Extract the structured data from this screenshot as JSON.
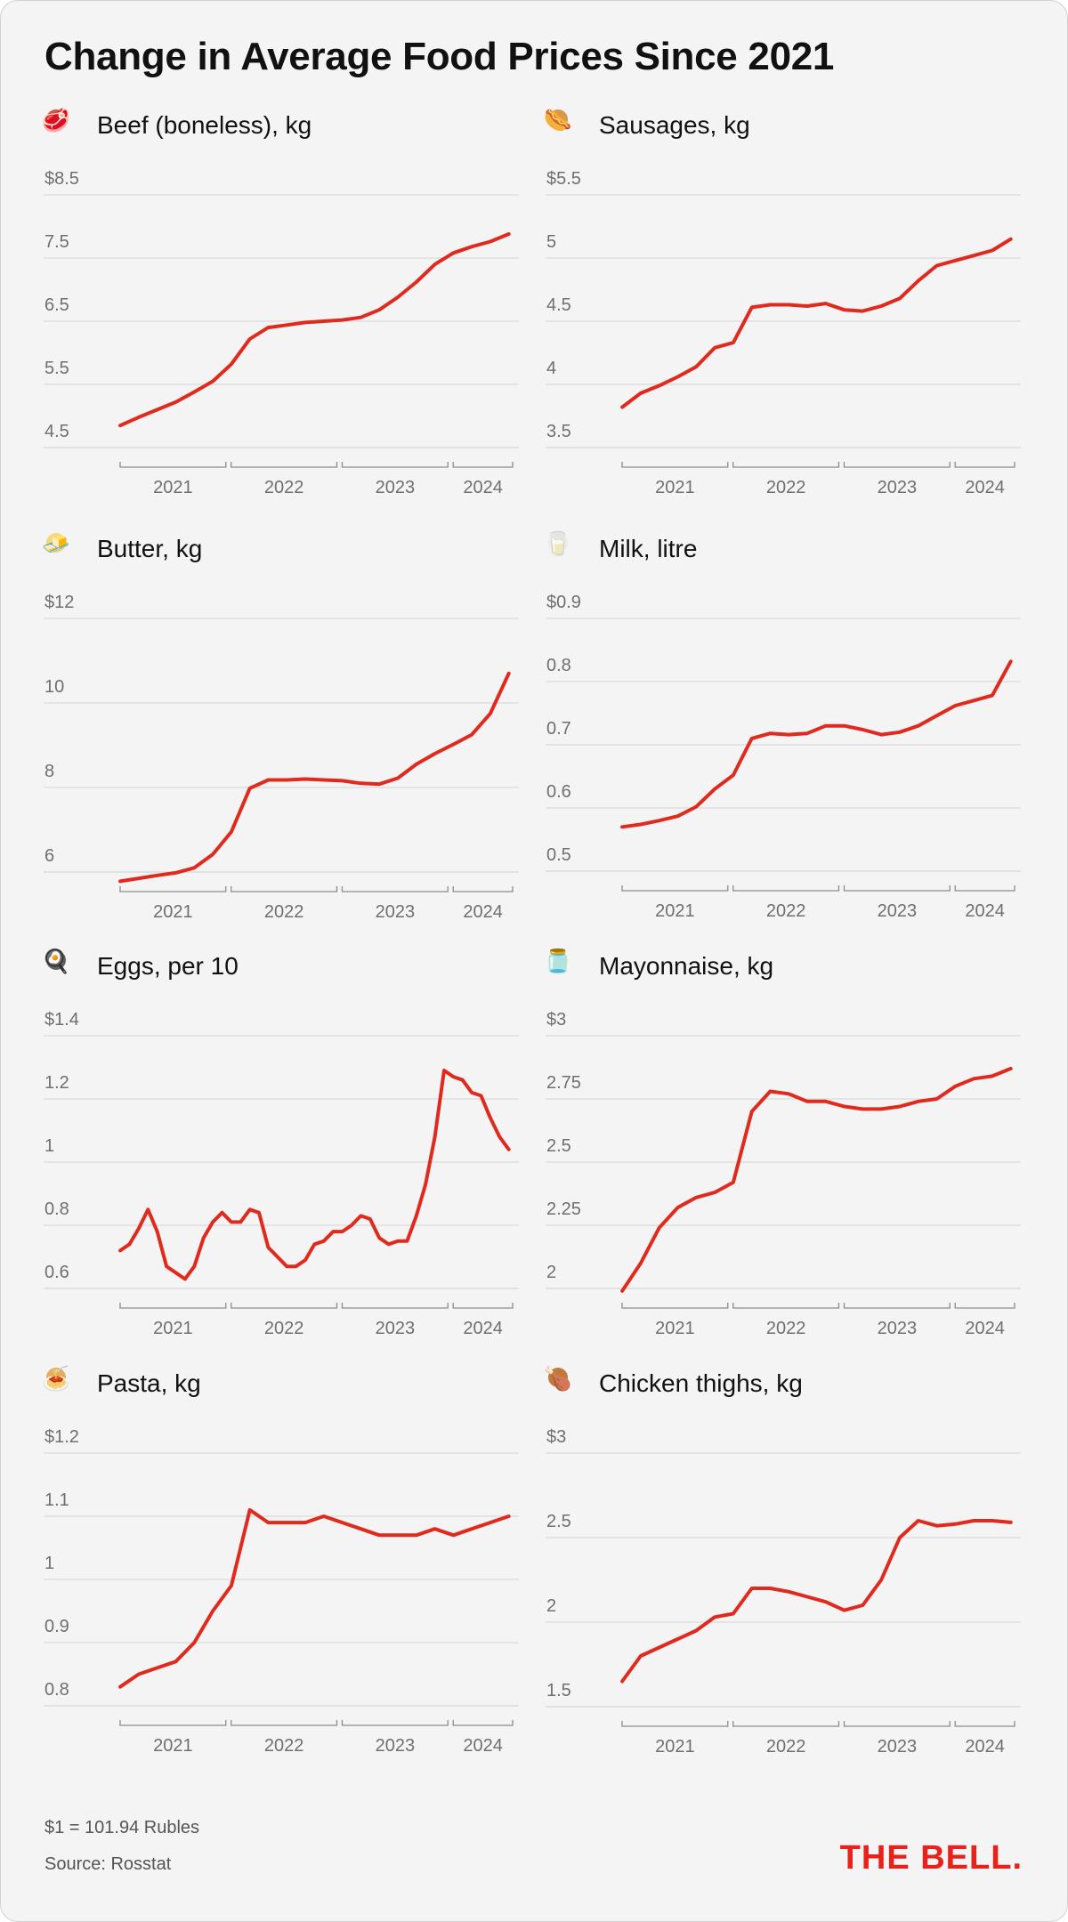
{
  "title": "Change in Average Food Prices Since 2021",
  "footnotes": {
    "exchange_rate": "$1 = 101.94 Rubles",
    "source": "Source: Rosstat"
  },
  "brand": "THE BELL.",
  "colors": {
    "line": "#e02a1e",
    "grid": "#d9d9d9",
    "axis_text": "#6f6f6f",
    "brand": "#e8211a"
  },
  "chart_data": [
    {
      "type": "line",
      "title": "Beef (boneless), kg",
      "icon": "beef-steak-icon",
      "yticks": [
        "$8.5",
        "7.5",
        "6.5",
        "5.5",
        "4.5"
      ],
      "ylim": [
        4.1,
        8.5
      ],
      "x_categories": [
        "2021",
        "2022",
        "2023",
        "2024"
      ],
      "x": [
        "2021-01",
        "2021-03",
        "2021-05",
        "2021-07",
        "2021-09",
        "2021-11",
        "2022-01",
        "2022-03",
        "2022-05",
        "2022-07",
        "2022-09",
        "2022-11",
        "2023-01",
        "2023-03",
        "2023-05",
        "2023-07",
        "2023-09",
        "2023-11",
        "2024-01",
        "2024-03",
        "2024-05",
        "2024-07"
      ],
      "values": [
        4.85,
        4.98,
        5.1,
        5.22,
        5.38,
        5.55,
        5.82,
        6.22,
        6.4,
        6.44,
        6.48,
        6.5,
        6.52,
        6.56,
        6.68,
        6.88,
        7.12,
        7.4,
        7.58,
        7.68,
        7.76,
        7.88
      ]
    },
    {
      "type": "line",
      "title": "Sausages, kg",
      "icon": "hot-dog-icon",
      "yticks": [
        "$5.5",
        "5",
        "4.5",
        "4",
        "3.5"
      ],
      "ylim": [
        3.3,
        5.5
      ],
      "x_categories": [
        "2021",
        "2022",
        "2023",
        "2024"
      ],
      "x": [
        "2021-01",
        "2021-03",
        "2021-05",
        "2021-07",
        "2021-09",
        "2021-11",
        "2022-01",
        "2022-03",
        "2022-05",
        "2022-07",
        "2022-09",
        "2022-11",
        "2023-01",
        "2023-03",
        "2023-05",
        "2023-07",
        "2023-09",
        "2023-11",
        "2024-01",
        "2024-03",
        "2024-05",
        "2024-07"
      ],
      "values": [
        3.82,
        3.93,
        3.99,
        4.06,
        4.14,
        4.29,
        4.33,
        4.61,
        4.63,
        4.63,
        4.62,
        4.64,
        4.59,
        4.58,
        4.62,
        4.68,
        4.82,
        4.94,
        4.98,
        5.02,
        5.06,
        5.15
      ]
    },
    {
      "type": "line",
      "title": "Butter, kg",
      "icon": "butter-icon",
      "yticks": [
        "$12",
        "10",
        "8",
        "6"
      ],
      "ylim": [
        5.5,
        12
      ],
      "x_categories": [
        "2021",
        "2022",
        "2023",
        "2024"
      ],
      "x": [
        "2021-01",
        "2021-03",
        "2021-05",
        "2021-07",
        "2021-09",
        "2021-11",
        "2022-01",
        "2022-03",
        "2022-05",
        "2022-07",
        "2022-09",
        "2022-11",
        "2023-01",
        "2023-03",
        "2023-05",
        "2023-07",
        "2023-09",
        "2023-11",
        "2024-01",
        "2024-03",
        "2024-05",
        "2024-07"
      ],
      "values": [
        5.78,
        5.85,
        5.92,
        5.98,
        6.1,
        6.42,
        6.95,
        7.98,
        8.18,
        8.18,
        8.2,
        8.18,
        8.16,
        8.1,
        8.08,
        8.22,
        8.55,
        8.8,
        9.02,
        9.25,
        9.75,
        10.7
      ]
    },
    {
      "type": "line",
      "title": "Milk, litre",
      "icon": "glass-of-milk-icon",
      "yticks": [
        "$0.9",
        "0.8",
        "0.7",
        "0.6",
        "0.5"
      ],
      "ylim": [
        0.465,
        0.9
      ],
      "x_categories": [
        "2021",
        "2022",
        "2023",
        "2024"
      ],
      "x": [
        "2021-01",
        "2021-03",
        "2021-05",
        "2021-07",
        "2021-09",
        "2021-11",
        "2022-01",
        "2022-03",
        "2022-05",
        "2022-07",
        "2022-09",
        "2022-11",
        "2023-01",
        "2023-03",
        "2023-05",
        "2023-07",
        "2023-09",
        "2023-11",
        "2024-01",
        "2024-03",
        "2024-05",
        "2024-07"
      ],
      "values": [
        0.57,
        0.574,
        0.58,
        0.587,
        0.602,
        0.63,
        0.652,
        0.71,
        0.718,
        0.716,
        0.718,
        0.73,
        0.73,
        0.724,
        0.716,
        0.72,
        0.73,
        0.746,
        0.762,
        0.77,
        0.778,
        0.832
      ]
    },
    {
      "type": "line",
      "title": "Eggs, per 10",
      "icon": "frying-pan-egg-icon",
      "yticks": [
        "$1.4",
        "1.2",
        "1",
        "0.8",
        "0.6"
      ],
      "ylim": [
        0.53,
        1.4
      ],
      "x_categories": [
        "2021",
        "2022",
        "2023",
        "2024"
      ],
      "x": [
        "2021-01",
        "2021-02",
        "2021-03",
        "2021-04",
        "2021-05",
        "2021-06",
        "2021-07",
        "2021-08",
        "2021-09",
        "2021-10",
        "2021-11",
        "2021-12",
        "2022-01",
        "2022-02",
        "2022-03",
        "2022-04",
        "2022-05",
        "2022-06",
        "2022-07",
        "2022-08",
        "2022-09",
        "2022-10",
        "2022-11",
        "2022-12",
        "2023-01",
        "2023-02",
        "2023-03",
        "2023-04",
        "2023-05",
        "2023-06",
        "2023-07",
        "2023-08",
        "2023-09",
        "2023-10",
        "2023-11",
        "2023-12",
        "2024-01",
        "2024-02",
        "2024-03",
        "2024-04",
        "2024-05",
        "2024-06",
        "2024-07"
      ],
      "values": [
        0.72,
        0.74,
        0.79,
        0.85,
        0.78,
        0.67,
        0.65,
        0.63,
        0.67,
        0.76,
        0.81,
        0.84,
        0.81,
        0.81,
        0.85,
        0.84,
        0.73,
        0.7,
        0.67,
        0.67,
        0.69,
        0.74,
        0.75,
        0.78,
        0.78,
        0.8,
        0.83,
        0.82,
        0.76,
        0.74,
        0.75,
        0.75,
        0.83,
        0.93,
        1.08,
        1.29,
        1.27,
        1.26,
        1.22,
        1.21,
        1.14,
        1.08,
        1.04
      ]
    },
    {
      "type": "line",
      "title": "Mayonnaise, kg",
      "icon": "mayonnaise-jar-icon",
      "yticks": [
        "$3",
        "2.75",
        "2.5",
        "2.25",
        "2"
      ],
      "ylim": [
        1.92,
        3
      ],
      "x_categories": [
        "2021",
        "2022",
        "2023",
        "2024"
      ],
      "x": [
        "2021-01",
        "2021-03",
        "2021-05",
        "2021-07",
        "2021-09",
        "2021-11",
        "2022-01",
        "2022-03",
        "2022-05",
        "2022-07",
        "2022-09",
        "2022-11",
        "2023-01",
        "2023-03",
        "2023-05",
        "2023-07",
        "2023-09",
        "2023-11",
        "2024-01",
        "2024-03",
        "2024-05",
        "2024-07"
      ],
      "values": [
        1.99,
        2.1,
        2.24,
        2.32,
        2.36,
        2.38,
        2.42,
        2.7,
        2.78,
        2.77,
        2.74,
        2.74,
        2.72,
        2.71,
        2.71,
        2.72,
        2.74,
        2.75,
        2.8,
        2.83,
        2.84,
        2.87
      ]
    },
    {
      "type": "line",
      "title": "Pasta, kg",
      "icon": "spaghetti-icon",
      "yticks": [
        "$1.2",
        "1.1",
        "1",
        "0.9",
        "0.8"
      ],
      "ylim": [
        0.77,
        1.2
      ],
      "x_categories": [
        "2021",
        "2022",
        "2023",
        "2024"
      ],
      "x": [
        "2021-01",
        "2021-03",
        "2021-05",
        "2021-07",
        "2021-09",
        "2021-11",
        "2022-01",
        "2022-03",
        "2022-05",
        "2022-07",
        "2022-09",
        "2022-11",
        "2023-01",
        "2023-03",
        "2023-05",
        "2023-07",
        "2023-09",
        "2023-11",
        "2024-01",
        "2024-03",
        "2024-05",
        "2024-07"
      ],
      "values": [
        0.83,
        0.85,
        0.86,
        0.87,
        0.9,
        0.95,
        0.99,
        1.11,
        1.09,
        1.09,
        1.09,
        1.1,
        1.09,
        1.08,
        1.07,
        1.07,
        1.07,
        1.08,
        1.07,
        1.08,
        1.09,
        1.1
      ]
    },
    {
      "type": "line",
      "title": "Chicken thighs, kg",
      "icon": "poultry-leg-icon",
      "yticks": [
        "$3",
        "2.5",
        "2",
        "1.5"
      ],
      "ylim": [
        1.4,
        3
      ],
      "x_categories": [
        "2021",
        "2022",
        "2023",
        "2024"
      ],
      "x": [
        "2021-01",
        "2021-03",
        "2021-05",
        "2021-07",
        "2021-09",
        "2021-11",
        "2022-01",
        "2022-03",
        "2022-05",
        "2022-07",
        "2022-09",
        "2022-11",
        "2023-01",
        "2023-03",
        "2023-05",
        "2023-07",
        "2023-09",
        "2023-11",
        "2024-01",
        "2024-03",
        "2024-05",
        "2024-07"
      ],
      "values": [
        1.65,
        1.8,
        1.85,
        1.9,
        1.95,
        2.03,
        2.05,
        2.2,
        2.2,
        2.18,
        2.15,
        2.12,
        2.07,
        2.1,
        2.25,
        2.5,
        2.6,
        2.57,
        2.58,
        2.6,
        2.6,
        2.59
      ]
    }
  ]
}
